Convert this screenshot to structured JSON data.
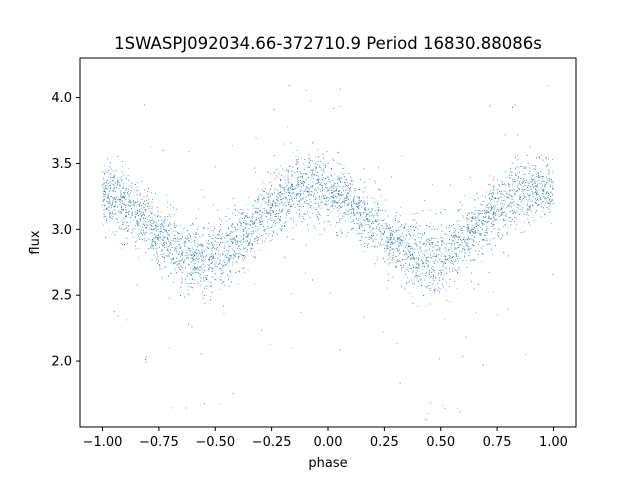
{
  "chart_data": {
    "type": "scatter",
    "title": "1SWASPJ092034.66-372710.9 Period 16830.88086s",
    "xlabel": "phase",
    "ylabel": "flux",
    "xlim": [
      -1.1,
      1.1
    ],
    "ylim": [
      1.5,
      4.3
    ],
    "x_ticks": [
      -1.0,
      -0.75,
      -0.5,
      -0.25,
      0.0,
      0.25,
      0.5,
      0.75,
      1.0
    ],
    "x_tick_labels": [
      "−1.00",
      "−0.75",
      "−0.50",
      "−0.25",
      "0.00",
      "0.25",
      "0.50",
      "0.75",
      "1.00"
    ],
    "y_ticks": [
      2.0,
      2.5,
      3.0,
      3.5,
      4.0
    ],
    "y_tick_labels": [
      "2.0",
      "2.5",
      "3.0",
      "3.5",
      "4.0"
    ],
    "grid": false,
    "marker_color": "#1f77b4",
    "series": [
      {
        "x": [
          -1.0,
          -0.95,
          -0.9,
          -0.85,
          -0.8,
          -0.75,
          -0.7,
          -0.65,
          -0.6,
          -0.55,
          -0.5,
          -0.45,
          -0.4,
          -0.35,
          -0.3,
          -0.25,
          -0.2,
          -0.15,
          -0.1,
          -0.05,
          0.0,
          0.05,
          0.1,
          0.15,
          0.2,
          0.25,
          0.3,
          0.35,
          0.4,
          0.45,
          0.5,
          0.55,
          0.6,
          0.65,
          0.7,
          0.75,
          0.8,
          0.85,
          0.9,
          0.95,
          1.0
        ],
        "y": [
          3.25,
          3.24,
          3.18,
          3.12,
          3.05,
          2.97,
          2.9,
          2.83,
          2.79,
          2.76,
          2.78,
          2.83,
          2.9,
          2.99,
          3.08,
          3.16,
          3.24,
          3.29,
          3.31,
          3.32,
          3.3,
          3.25,
          3.18,
          3.11,
          3.04,
          2.97,
          2.9,
          2.83,
          2.78,
          2.76,
          2.79,
          2.84,
          2.92,
          3.0,
          3.08,
          3.16,
          3.22,
          3.27,
          3.3,
          3.31,
          3.29
        ],
        "scatter_sd": [
          0.12,
          0.12,
          0.12,
          0.12,
          0.12,
          0.12,
          0.12,
          0.13,
          0.14,
          0.15,
          0.15,
          0.14,
          0.13,
          0.12,
          0.12,
          0.12,
          0.12,
          0.12,
          0.13,
          0.13,
          0.12,
          0.12,
          0.12,
          0.12,
          0.12,
          0.12,
          0.12,
          0.13,
          0.14,
          0.15,
          0.15,
          0.14,
          0.13,
          0.12,
          0.12,
          0.12,
          0.12,
          0.12,
          0.12,
          0.12,
          0.12
        ]
      }
    ]
  }
}
